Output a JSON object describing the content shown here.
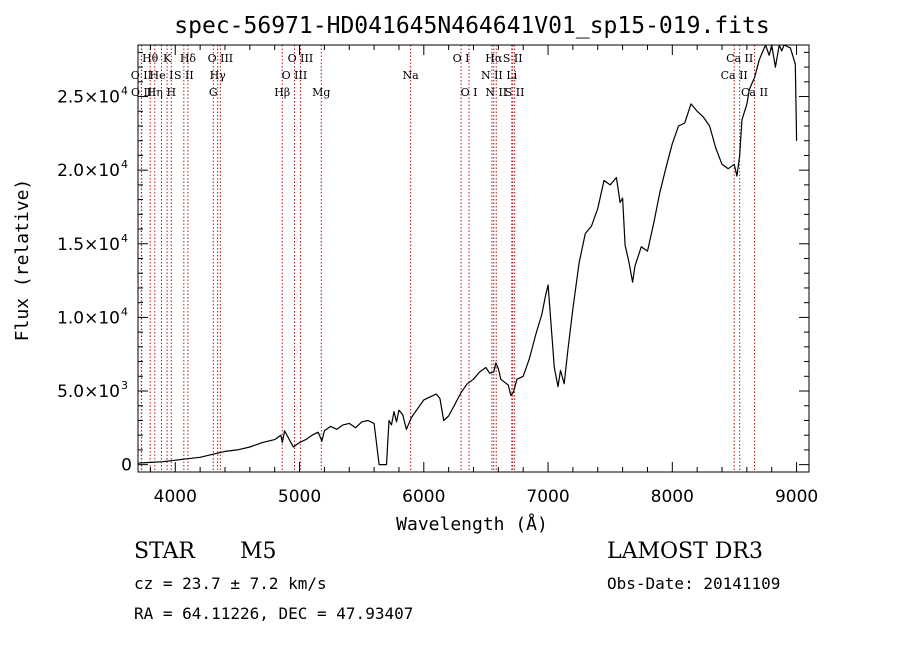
{
  "chart_data": {
    "type": "line",
    "title": "spec-56971-HD041645N464641V01_sp15-019.fits",
    "xlabel": "Wavelength (Å)",
    "ylabel": "Flux (relative)",
    "xlim": [
      3700,
      9100
    ],
    "ylim": [
      -500,
      28500
    ],
    "x_ticks": [
      4000,
      5000,
      6000,
      7000,
      8000,
      9000
    ],
    "x_tick_labels": [
      "4000",
      "5000",
      "6000",
      "7000",
      "8000",
      "9000"
    ],
    "y_ticks": [
      0,
      5000,
      10000,
      15000,
      20000,
      25000
    ],
    "y_tick_labels": [
      {
        "mantissa": "0",
        "exp": ""
      },
      {
        "mantissa": "5.0×10",
        "exp": "3"
      },
      {
        "mantissa": "1.0×10",
        "exp": "4"
      },
      {
        "mantissa": "1.5×10",
        "exp": "4"
      },
      {
        "mantissa": "2.0×10",
        "exp": "4"
      },
      {
        "mantissa": "2.5×10",
        "exp": "4"
      }
    ],
    "series": [
      {
        "name": "flux",
        "x": [
          3700,
          3800,
          3900,
          4000,
          4100,
          4200,
          4300,
          4400,
          4500,
          4600,
          4700,
          4800,
          4850,
          4861,
          4880,
          4950,
          5000,
          5050,
          5100,
          5150,
          5180,
          5200,
          5250,
          5300,
          5350,
          5400,
          5450,
          5500,
          5550,
          5600,
          5640,
          5660,
          5700,
          5720,
          5740,
          5760,
          5780,
          5800,
          5830,
          5860,
          5900,
          5950,
          6000,
          6050,
          6100,
          6130,
          6160,
          6200,
          6250,
          6300,
          6350,
          6400,
          6450,
          6500,
          6530,
          6563,
          6580,
          6600,
          6620,
          6650,
          6680,
          6700,
          6720,
          6750,
          6800,
          6850,
          6900,
          6950,
          6980,
          7000,
          7050,
          7080,
          7100,
          7130,
          7160,
          7200,
          7250,
          7300,
          7350,
          7400,
          7450,
          7500,
          7550,
          7580,
          7600,
          7620,
          7650,
          7680,
          7700,
          7750,
          7800,
          7850,
          7900,
          7950,
          8000,
          8050,
          8100,
          8150,
          8200,
          8250,
          8300,
          8350,
          8400,
          8450,
          8498,
          8520,
          8542,
          8560,
          8600,
          8620,
          8662,
          8700,
          8750,
          8780,
          8800,
          8830,
          8860,
          8880,
          8900,
          8950,
          8990,
          9000
        ],
        "y": [
          100,
          150,
          200,
          300,
          400,
          500,
          700,
          900,
          1000,
          1200,
          1500,
          1700,
          2000,
          1500,
          2300,
          1200,
          1500,
          1700,
          2000,
          2200,
          1600,
          2300,
          2600,
          2400,
          2700,
          2800,
          2500,
          2900,
          3000,
          2800,
          0,
          0,
          0,
          3000,
          2700,
          3600,
          2900,
          3700,
          3400,
          2400,
          3200,
          3800,
          4400,
          4600,
          4800,
          4500,
          3000,
          3300,
          4100,
          4900,
          5500,
          5800,
          6300,
          6600,
          6200,
          6300,
          6900,
          6500,
          5800,
          5600,
          5400,
          4700,
          4900,
          5800,
          6000,
          7200,
          8800,
          10200,
          11500,
          12200,
          6600,
          5300,
          6400,
          5500,
          7800,
          10600,
          13700,
          15700,
          16200,
          17400,
          19300,
          19000,
          19500,
          17800,
          18100,
          14900,
          13800,
          12400,
          13500,
          14800,
          14500,
          16400,
          18500,
          20200,
          21800,
          23000,
          23200,
          24500,
          24000,
          23600,
          23000,
          21500,
          20400,
          20100,
          20400,
          19600,
          21000,
          23400,
          24500,
          25500,
          26300,
          27500,
          28800,
          27800,
          29200,
          27000,
          28500,
          28100,
          28600,
          28300,
          27200,
          22000
        ]
      }
    ],
    "lines": [
      {
        "name": "O II",
        "wl": 3727,
        "row": 1
      },
      {
        "name": "O II",
        "wl": 3729,
        "row": 2
      },
      {
        "name": "Hθ",
        "wl": 3798,
        "row": 0
      },
      {
        "name": "Hη",
        "wl": 3835,
        "row": 2
      },
      {
        "name": "He I",
        "wl": 3889,
        "row": 1
      },
      {
        "name": "K",
        "wl": 3934,
        "row": 0
      },
      {
        "name": "H",
        "wl": 3968,
        "row": 2
      },
      {
        "name": "S II",
        "wl": 4069,
        "row": 1
      },
      {
        "name": "Hδ",
        "wl": 4102,
        "row": 0
      },
      {
        "name": "G",
        "wl": 4306,
        "row": 2
      },
      {
        "name": "Hγ",
        "wl": 4341,
        "row": 1
      },
      {
        "name": "O III",
        "wl": 4363,
        "row": 0
      },
      {
        "name": "Hβ",
        "wl": 4861,
        "row": 2
      },
      {
        "name": "O III",
        "wl": 4959,
        "row": 1
      },
      {
        "name": "O III",
        "wl": 5007,
        "row": 0
      },
      {
        "name": "Mg",
        "wl": 5175,
        "row": 2
      },
      {
        "name": "Na",
        "wl": 5894,
        "row": 1
      },
      {
        "name": "O I",
        "wl": 6300,
        "row": 0
      },
      {
        "name": "O I",
        "wl": 6364,
        "row": 2
      },
      {
        "name": "N II",
        "wl": 6548,
        "row": 1
      },
      {
        "name": "Hα",
        "wl": 6563,
        "row": 0
      },
      {
        "name": "N II",
        "wl": 6583,
        "row": 2
      },
      {
        "name": "Li",
        "wl": 6708,
        "row": 1
      },
      {
        "name": "S II",
        "wl": 6716,
        "row": 0
      },
      {
        "name": "S II",
        "wl": 6731,
        "row": 2
      },
      {
        "name": "Ca II",
        "wl": 8498,
        "row": 1
      },
      {
        "name": "Ca II",
        "wl": 8542,
        "row": 0
      },
      {
        "name": "Ca II",
        "wl": 8662,
        "row": 2
      }
    ],
    "colors": {
      "line_marker": "#b81414",
      "spectrum": "#000000",
      "axes": "#000000"
    }
  },
  "info": {
    "class": "STAR",
    "subclass": "M5",
    "survey": "LAMOST DR3",
    "cz": "cz = 23.7 ± 7.2 km/s",
    "obs_date": "Obs-Date: 20141109",
    "coords": "RA =  64.11226, DEC =  47.93407"
  }
}
